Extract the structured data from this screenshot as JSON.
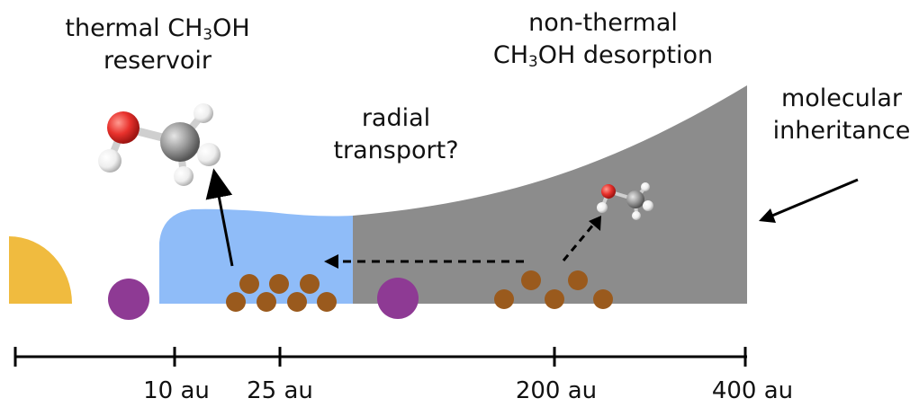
{
  "labels": {
    "thermal_line1_pre": "thermal CH",
    "thermal_line1_sub": "3",
    "thermal_line1_post": "OH",
    "thermal_line2": "reservoir",
    "nonthermal_line1": "non-thermal",
    "nonthermal_line2_pre": "CH",
    "nonthermal_line2_sub": "3",
    "nonthermal_line2_post": "OH desorption",
    "radial_line1": "radial",
    "radial_line2": "transport?",
    "molecular_line1": "molecular",
    "molecular_line2": "inheritance"
  },
  "axis": {
    "ticks": [
      {
        "label": "10 au"
      },
      {
        "label": "25 au"
      },
      {
        "label": "200 au"
      },
      {
        "label": "400 au"
      }
    ]
  },
  "colors": {
    "star": "#f0bb3f",
    "planet": "#8e3a94",
    "thermal_region": "#8fbcf8",
    "nonthermal_region": "#8c8c8c",
    "grains": "#9a5a1d",
    "oxygen": "#e8312c",
    "carbon": "#9a9a9a",
    "hydrogen": "#f2f2f2"
  },
  "icons": [
    "star-icon",
    "planet-icon",
    "methanol-molecule-icon",
    "dust-grain-icon"
  ]
}
